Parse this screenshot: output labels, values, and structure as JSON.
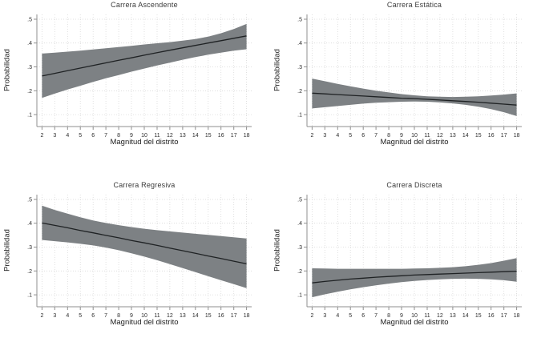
{
  "page": {
    "background": "#ffffff"
  },
  "chart_data": [
    {
      "type": "line",
      "title": "Carrera Ascendente",
      "xlabel": "Magnitud del distrito",
      "ylabel": "Probabilidad",
      "x": [
        2,
        3,
        4,
        5,
        6,
        7,
        8,
        9,
        10,
        11,
        12,
        13,
        14,
        15,
        16,
        17,
        18
      ],
      "values": [
        0.262,
        0.273,
        0.284,
        0.295,
        0.306,
        0.317,
        0.328,
        0.338,
        0.349,
        0.36,
        0.37,
        0.38,
        0.39,
        0.4,
        0.41,
        0.42,
        0.43
      ],
      "ci_upper": [
        0.356,
        0.36,
        0.364,
        0.368,
        0.373,
        0.378,
        0.383,
        0.388,
        0.394,
        0.399,
        0.404,
        0.41,
        0.417,
        0.427,
        0.441,
        0.459,
        0.48
      ],
      "ci_lower": [
        0.17,
        0.188,
        0.205,
        0.221,
        0.237,
        0.252,
        0.266,
        0.28,
        0.293,
        0.306,
        0.318,
        0.33,
        0.341,
        0.351,
        0.36,
        0.368,
        0.374
      ],
      "xticks": [
        2,
        3,
        4,
        5,
        6,
        7,
        8,
        9,
        10,
        11,
        12,
        13,
        14,
        15,
        16,
        17,
        18
      ],
      "yticks": [
        0.1,
        0.2,
        0.3,
        0.4,
        0.5
      ],
      "ytick_labels": [
        ".1",
        ".2",
        ".3",
        ".4",
        ".5"
      ],
      "xlim": [
        1.6,
        18.4
      ],
      "ylim": [
        0.05,
        0.52
      ],
      "grid": true,
      "legend": "none",
      "band_color": "#7d8184",
      "line_color": "#1f2224"
    },
    {
      "type": "line",
      "title": "Carrera Estática",
      "xlabel": "Magnitud del distrito",
      "ylabel": "Probabilidad",
      "x": [
        2,
        3,
        4,
        5,
        6,
        7,
        8,
        9,
        10,
        11,
        12,
        13,
        14,
        15,
        16,
        17,
        18
      ],
      "values": [
        0.19,
        0.187,
        0.184,
        0.181,
        0.178,
        0.175,
        0.172,
        0.169,
        0.167,
        0.164,
        0.161,
        0.158,
        0.155,
        0.152,
        0.148,
        0.144,
        0.14
      ],
      "ci_upper": [
        0.251,
        0.24,
        0.229,
        0.219,
        0.209,
        0.2,
        0.193,
        0.186,
        0.181,
        0.177,
        0.175,
        0.174,
        0.175,
        0.177,
        0.18,
        0.184,
        0.189
      ],
      "ci_lower": [
        0.126,
        0.131,
        0.136,
        0.141,
        0.146,
        0.15,
        0.152,
        0.154,
        0.155,
        0.154,
        0.151,
        0.147,
        0.141,
        0.133,
        0.123,
        0.11,
        0.094
      ],
      "xticks": [
        2,
        3,
        4,
        5,
        6,
        7,
        8,
        9,
        10,
        11,
        12,
        13,
        14,
        15,
        16,
        17,
        18
      ],
      "yticks": [
        0.1,
        0.2,
        0.3,
        0.4,
        0.5
      ],
      "ytick_labels": [
        ".1",
        ".2",
        ".3",
        ".4",
        ".5"
      ],
      "xlim": [
        1.6,
        18.4
      ],
      "ylim": [
        0.05,
        0.52
      ],
      "grid": true,
      "legend": "none",
      "band_color": "#7d8184",
      "line_color": "#1f2224"
    },
    {
      "type": "line",
      "title": "Carrera Regresiva",
      "xlabel": "Magnitud del distrito",
      "ylabel": "Probabilidad",
      "x": [
        2,
        3,
        4,
        5,
        6,
        7,
        8,
        9,
        10,
        11,
        12,
        13,
        14,
        15,
        16,
        17,
        18
      ],
      "values": [
        0.401,
        0.391,
        0.381,
        0.37,
        0.36,
        0.349,
        0.339,
        0.328,
        0.318,
        0.307,
        0.296,
        0.285,
        0.274,
        0.263,
        0.252,
        0.241,
        0.23
      ],
      "ci_upper": [
        0.474,
        0.456,
        0.44,
        0.425,
        0.412,
        0.401,
        0.392,
        0.384,
        0.377,
        0.371,
        0.366,
        0.361,
        0.356,
        0.351,
        0.346,
        0.341,
        0.336
      ],
      "ci_lower": [
        0.33,
        0.325,
        0.32,
        0.314,
        0.307,
        0.298,
        0.287,
        0.274,
        0.26,
        0.245,
        0.229,
        0.212,
        0.195,
        0.178,
        0.161,
        0.145,
        0.128
      ],
      "xticks": [
        2,
        3,
        4,
        5,
        6,
        7,
        8,
        9,
        10,
        11,
        12,
        13,
        14,
        15,
        16,
        17,
        18
      ],
      "yticks": [
        0.1,
        0.2,
        0.3,
        0.4,
        0.5
      ],
      "ytick_labels": [
        ".1",
        ".2",
        ".3",
        ".4",
        ".5"
      ],
      "xlim": [
        1.6,
        18.4
      ],
      "ylim": [
        0.05,
        0.52
      ],
      "grid": true,
      "legend": "none",
      "band_color": "#7d8184",
      "line_color": "#1f2224"
    },
    {
      "type": "line",
      "title": "Carrera Discreta",
      "xlabel": "Magnitud del distrito",
      "ylabel": "Probabilidad",
      "x": [
        2,
        3,
        4,
        5,
        6,
        7,
        8,
        9,
        10,
        11,
        12,
        13,
        14,
        15,
        16,
        17,
        18
      ],
      "values": [
        0.15,
        0.156,
        0.161,
        0.166,
        0.17,
        0.174,
        0.177,
        0.18,
        0.183,
        0.185,
        0.187,
        0.189,
        0.191,
        0.193,
        0.195,
        0.197,
        0.199
      ],
      "ci_upper": [
        0.211,
        0.21,
        0.209,
        0.209,
        0.209,
        0.209,
        0.209,
        0.209,
        0.21,
        0.211,
        0.213,
        0.216,
        0.22,
        0.226,
        0.233,
        0.243,
        0.254
      ],
      "ci_lower": [
        0.09,
        0.102,
        0.113,
        0.123,
        0.132,
        0.14,
        0.147,
        0.153,
        0.158,
        0.162,
        0.165,
        0.167,
        0.168,
        0.167,
        0.165,
        0.161,
        0.155
      ],
      "xticks": [
        2,
        3,
        4,
        5,
        6,
        7,
        8,
        9,
        10,
        11,
        12,
        13,
        14,
        15,
        16,
        17,
        18
      ],
      "yticks": [
        0.1,
        0.2,
        0.3,
        0.4,
        0.5
      ],
      "ytick_labels": [
        ".1",
        ".2",
        ".3",
        ".4",
        ".5"
      ],
      "xlim": [
        1.6,
        18.4
      ],
      "ylim": [
        0.05,
        0.52
      ],
      "grid": true,
      "legend": "none",
      "band_color": "#7d8184",
      "line_color": "#1f2224"
    }
  ]
}
